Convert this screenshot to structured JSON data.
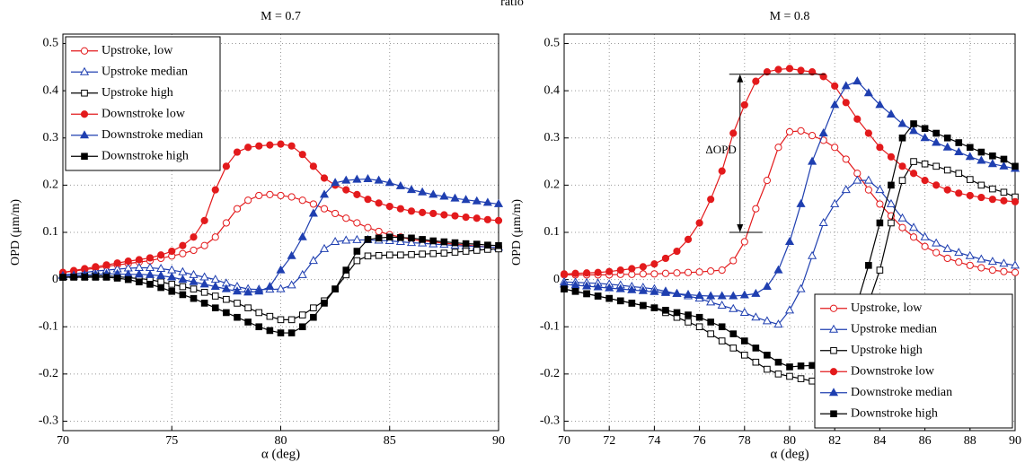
{
  "suptitle": "ratio",
  "chart_data": [
    {
      "type": "line",
      "title": "M = 0.7",
      "x_label": "α (deg)",
      "y_label": "OPD (μm/m)",
      "xlim": [
        70,
        90
      ],
      "xticks": [
        70,
        75,
        80,
        85,
        90
      ],
      "ylim": [
        -0.32,
        0.52
      ],
      "yticks": [
        -0.3,
        -0.2,
        -0.1,
        0,
        0.1,
        0.2,
        0.3,
        0.4,
        0.5
      ],
      "grid": true,
      "legend": "upper left",
      "x": [
        70,
        70.5,
        71,
        71.5,
        72,
        72.5,
        73,
        73.5,
        74,
        74.5,
        75,
        75.5,
        76,
        76.5,
        77,
        77.5,
        78,
        78.5,
        79,
        79.5,
        80,
        80.5,
        81,
        81.5,
        82,
        82.5,
        83,
        83.5,
        84,
        84.5,
        85,
        85.5,
        86,
        86.5,
        87,
        87.5,
        88,
        88.5,
        89,
        89.5,
        90
      ],
      "series": [
        {
          "name": "Upstroke, low",
          "color": "#e31a1c",
          "marker": "circle",
          "filled": false,
          "values": [
            0.015,
            0.018,
            0.021,
            0.024,
            0.028,
            0.031,
            0.034,
            0.037,
            0.04,
            0.045,
            0.05,
            0.055,
            0.062,
            0.072,
            0.09,
            0.12,
            0.15,
            0.168,
            0.178,
            0.18,
            0.178,
            0.175,
            0.168,
            0.16,
            0.15,
            0.14,
            0.13,
            0.12,
            0.11,
            0.102,
            0.095,
            0.09,
            0.085,
            0.082,
            0.08,
            0.077,
            0.075,
            0.073,
            0.071,
            0.069,
            0.068
          ]
        },
        {
          "name": "Upstroke median",
          "color": "#1f3fb0",
          "marker": "triangle",
          "filled": false,
          "values": [
            0.01,
            0.012,
            0.015,
            0.018,
            0.02,
            0.022,
            0.024,
            0.025,
            0.025,
            0.023,
            0.02,
            0.016,
            0.01,
            0.005,
            0,
            -0.008,
            -0.015,
            -0.02,
            -0.021,
            -0.021,
            -0.02,
            -0.012,
            0.01,
            0.04,
            0.065,
            0.08,
            0.083,
            0.084,
            0.084,
            0.083,
            0.082,
            0.08,
            0.078,
            0.077,
            0.075,
            0.074,
            0.072,
            0.071,
            0.07,
            0.069,
            0.068
          ]
        },
        {
          "name": "Upstroke high",
          "color": "#000000",
          "marker": "square",
          "filled": false,
          "values": [
            0.005,
            0.006,
            0.007,
            0.008,
            0.008,
            0.006,
            0.004,
            0.002,
            0,
            -0.005,
            -0.01,
            -0.015,
            -0.02,
            -0.027,
            -0.035,
            -0.042,
            -0.05,
            -0.06,
            -0.07,
            -0.078,
            -0.085,
            -0.085,
            -0.075,
            -0.06,
            -0.045,
            -0.02,
            0.01,
            0.04,
            0.05,
            0.051,
            0.052,
            0.052,
            0.053,
            0.054,
            0.055,
            0.056,
            0.058,
            0.06,
            0.062,
            0.064,
            0.065
          ]
        },
        {
          "name": "Downstroke low",
          "color": "#e31a1c",
          "marker": "circle",
          "filled": true,
          "values": [
            0.015,
            0.019,
            0.023,
            0.027,
            0.031,
            0.035,
            0.039,
            0.042,
            0.046,
            0.052,
            0.06,
            0.072,
            0.09,
            0.125,
            0.19,
            0.24,
            0.27,
            0.28,
            0.283,
            0.285,
            0.287,
            0.283,
            0.265,
            0.24,
            0.215,
            0.2,
            0.19,
            0.18,
            0.17,
            0.162,
            0.155,
            0.15,
            0.145,
            0.142,
            0.14,
            0.137,
            0.135,
            0.132,
            0.13,
            0.127,
            0.125
          ]
        },
        {
          "name": "Downstroke median",
          "color": "#1f3fb0",
          "marker": "triangle",
          "filled": true,
          "values": [
            0.008,
            0.009,
            0.01,
            0.011,
            0.012,
            0.012,
            0.011,
            0.011,
            0.01,
            0.008,
            0.005,
            0,
            -0.005,
            -0.01,
            -0.015,
            -0.02,
            -0.025,
            -0.027,
            -0.025,
            -0.015,
            0.02,
            0.05,
            0.09,
            0.14,
            0.18,
            0.205,
            0.21,
            0.212,
            0.213,
            0.21,
            0.205,
            0.198,
            0.19,
            0.185,
            0.18,
            0.176,
            0.172,
            0.169,
            0.166,
            0.163,
            0.16
          ]
        },
        {
          "name": "Downstroke high",
          "color": "#000000",
          "marker": "square",
          "filled": true,
          "values": [
            0.005,
            0.005,
            0.005,
            0.005,
            0.005,
            0.003,
            0,
            -0.005,
            -0.01,
            -0.017,
            -0.025,
            -0.032,
            -0.04,
            -0.05,
            -0.06,
            -0.07,
            -0.08,
            -0.09,
            -0.1,
            -0.108,
            -0.113,
            -0.113,
            -0.1,
            -0.08,
            -0.05,
            -0.02,
            0.02,
            0.06,
            0.085,
            0.088,
            0.09,
            0.089,
            0.088,
            0.085,
            0.082,
            0.08,
            0.078,
            0.076,
            0.075,
            0.073,
            0.072
          ]
        }
      ]
    },
    {
      "type": "line",
      "title": "M = 0.8",
      "x_label": "α (deg)",
      "y_label": "OPD (μm/m)",
      "xlim": [
        70,
        90
      ],
      "xticks": [
        70,
        72,
        74,
        76,
        78,
        80,
        82,
        84,
        86,
        88,
        90
      ],
      "ylim": [
        -0.32,
        0.52
      ],
      "yticks": [
        -0.3,
        -0.2,
        -0.1,
        0,
        0.1,
        0.2,
        0.3,
        0.4,
        0.5
      ],
      "grid": true,
      "legend": "lower right",
      "annotation": {
        "text": "ΔOPD",
        "x": 77.8,
        "y": [
          0.1,
          0.435
        ]
      },
      "x": [
        70,
        70.5,
        71,
        71.5,
        72,
        72.5,
        73,
        73.5,
        74,
        74.5,
        75,
        75.5,
        76,
        76.5,
        77,
        77.5,
        78,
        78.5,
        79,
        79.5,
        80,
        80.5,
        81,
        81.5,
        82,
        82.5,
        83,
        83.5,
        84,
        84.5,
        85,
        85.5,
        86,
        86.5,
        87,
        87.5,
        88,
        88.5,
        89,
        89.5,
        90
      ],
      "series": [
        {
          "name": "Upstroke, low",
          "color": "#e31a1c",
          "marker": "circle",
          "filled": false,
          "values": [
            0.01,
            0.01,
            0.01,
            0.01,
            0.01,
            0.011,
            0.011,
            0.012,
            0.012,
            0.013,
            0.014,
            0.015,
            0.016,
            0.018,
            0.02,
            0.04,
            0.08,
            0.15,
            0.21,
            0.28,
            0.313,
            0.315,
            0.305,
            0.295,
            0.28,
            0.255,
            0.225,
            0.19,
            0.16,
            0.135,
            0.11,
            0.09,
            0.07,
            0.057,
            0.045,
            0.037,
            0.03,
            0.025,
            0.02,
            0.017,
            0.015
          ]
        },
        {
          "name": "Upstroke median",
          "color": "#1f3fb0",
          "marker": "triangle",
          "filled": false,
          "values": [
            -0.005,
            -0.006,
            -0.007,
            -0.008,
            -0.01,
            -0.012,
            -0.015,
            -0.017,
            -0.02,
            -0.025,
            -0.03,
            -0.035,
            -0.04,
            -0.048,
            -0.055,
            -0.062,
            -0.07,
            -0.08,
            -0.088,
            -0.095,
            -0.065,
            -0.02,
            0.05,
            0.12,
            0.16,
            0.19,
            0.21,
            0.21,
            0.19,
            0.16,
            0.13,
            0.11,
            0.09,
            0.077,
            0.065,
            0.057,
            0.05,
            0.043,
            0.038,
            0.034,
            0.03
          ]
        },
        {
          "name": "Upstroke high",
          "color": "#000000",
          "marker": "square",
          "filled": false,
          "values": [
            -0.02,
            -0.025,
            -0.03,
            -0.035,
            -0.04,
            -0.045,
            -0.05,
            -0.055,
            -0.06,
            -0.07,
            -0.08,
            -0.09,
            -0.1,
            -0.115,
            -0.13,
            -0.145,
            -0.16,
            -0.175,
            -0.19,
            -0.2,
            -0.205,
            -0.21,
            -0.215,
            -0.22,
            -0.2,
            -0.15,
            -0.1,
            -0.05,
            0.02,
            0.12,
            0.21,
            0.25,
            0.245,
            0.24,
            0.232,
            0.225,
            0.212,
            0.2,
            0.192,
            0.185,
            0.175
          ]
        },
        {
          "name": "Downstroke low",
          "color": "#e31a1c",
          "marker": "circle",
          "filled": true,
          "values": [
            0.012,
            0.013,
            0.014,
            0.015,
            0.017,
            0.02,
            0.023,
            0.027,
            0.033,
            0.045,
            0.06,
            0.085,
            0.12,
            0.17,
            0.23,
            0.31,
            0.37,
            0.42,
            0.44,
            0.445,
            0.447,
            0.443,
            0.44,
            0.43,
            0.41,
            0.375,
            0.34,
            0.31,
            0.28,
            0.26,
            0.24,
            0.225,
            0.21,
            0.2,
            0.19,
            0.183,
            0.178,
            0.174,
            0.17,
            0.167,
            0.165
          ]
        },
        {
          "name": "Downstroke median",
          "color": "#1f3fb0",
          "marker": "triangle",
          "filled": true,
          "values": [
            -0.01,
            -0.012,
            -0.014,
            -0.016,
            -0.018,
            -0.02,
            -0.022,
            -0.024,
            -0.026,
            -0.028,
            -0.03,
            -0.032,
            -0.034,
            -0.035,
            -0.035,
            -0.035,
            -0.033,
            -0.03,
            -0.015,
            0.02,
            0.08,
            0.16,
            0.25,
            0.31,
            0.37,
            0.41,
            0.42,
            0.395,
            0.37,
            0.35,
            0.33,
            0.315,
            0.3,
            0.29,
            0.28,
            0.27,
            0.26,
            0.252,
            0.245,
            0.24,
            0.235
          ]
        },
        {
          "name": "Downstroke high",
          "color": "#000000",
          "marker": "square",
          "filled": true,
          "values": [
            -0.02,
            -0.025,
            -0.03,
            -0.035,
            -0.04,
            -0.045,
            -0.05,
            -0.055,
            -0.06,
            -0.065,
            -0.07,
            -0.075,
            -0.08,
            -0.09,
            -0.1,
            -0.115,
            -0.13,
            -0.145,
            -0.16,
            -0.175,
            -0.185,
            -0.183,
            -0.182,
            -0.18,
            -0.15,
            -0.1,
            -0.05,
            0.03,
            0.12,
            0.2,
            0.3,
            0.33,
            0.32,
            0.31,
            0.3,
            0.29,
            0.28,
            0.27,
            0.262,
            0.255,
            0.24
          ]
        }
      ]
    }
  ]
}
